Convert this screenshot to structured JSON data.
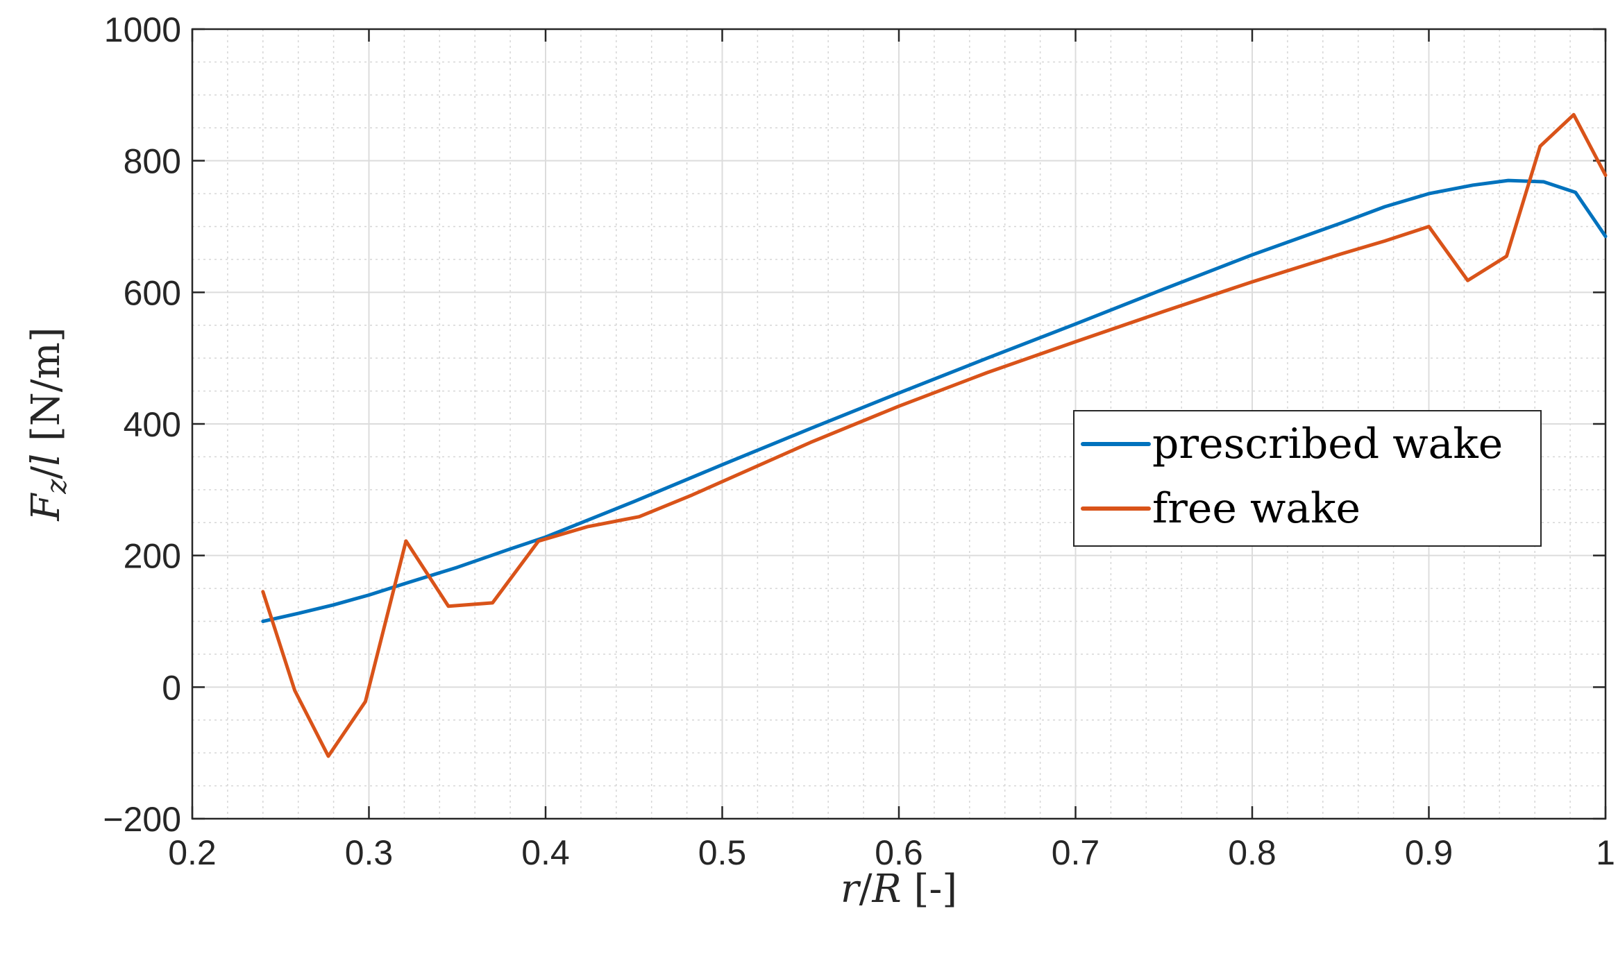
{
  "chart_data": {
    "type": "line",
    "xlabel": {
      "var1": "r",
      "sep": "/",
      "var2": "R",
      "unit": " [-]"
    },
    "ylabel": {
      "var1": "F",
      "sub": "z",
      "sep": "/",
      "var2": "l",
      "unit": " [N/m]"
    },
    "xlim": [
      0.2,
      1.0
    ],
    "ylim": [
      -200,
      1000
    ],
    "xticks": [
      "0.2",
      "0.3",
      "0.4",
      "0.5",
      "0.6",
      "0.7",
      "0.8",
      "0.9",
      "1"
    ],
    "yticks": [
      "−200",
      "0",
      "200",
      "400",
      "600",
      "800",
      "1000"
    ],
    "xtick_values": [
      0.2,
      0.3,
      0.4,
      0.5,
      0.6,
      0.7,
      0.8,
      0.9,
      1.0
    ],
    "ytick_values": [
      -200,
      0,
      200,
      400,
      600,
      800,
      1000
    ],
    "grid": true,
    "minor_grid": true,
    "legend_position": "center-right",
    "series": [
      {
        "name": "prescribed wake",
        "color": "#0072BD",
        "x": [
          0.24,
          0.26,
          0.28,
          0.3,
          0.32,
          0.35,
          0.38,
          0.4,
          0.45,
          0.5,
          0.55,
          0.6,
          0.65,
          0.7,
          0.75,
          0.8,
          0.85,
          0.875,
          0.9,
          0.925,
          0.945,
          0.965,
          0.983,
          1.0
        ],
        "y": [
          100,
          112,
          125,
          140,
          157,
          182,
          210,
          228,
          282,
          338,
          393,
          447,
          500,
          552,
          605,
          657,
          705,
          730,
          750,
          763,
          770,
          768,
          752,
          685
        ]
      },
      {
        "name": "free wake",
        "color": "#D95319",
        "x": [
          0.24,
          0.258,
          0.277,
          0.298,
          0.321,
          0.345,
          0.37,
          0.396,
          0.424,
          0.453,
          0.483,
          0.55,
          0.6,
          0.65,
          0.7,
          0.75,
          0.8,
          0.85,
          0.875,
          0.9,
          0.922,
          0.944,
          0.963,
          0.982,
          1.0
        ],
        "y": [
          145,
          -5,
          -105,
          -22,
          222,
          123,
          128,
          222,
          244,
          259,
          292,
          372,
          427,
          478,
          525,
          571,
          616,
          658,
          678,
          700,
          618,
          655,
          822,
          870,
          778
        ]
      }
    ]
  }
}
